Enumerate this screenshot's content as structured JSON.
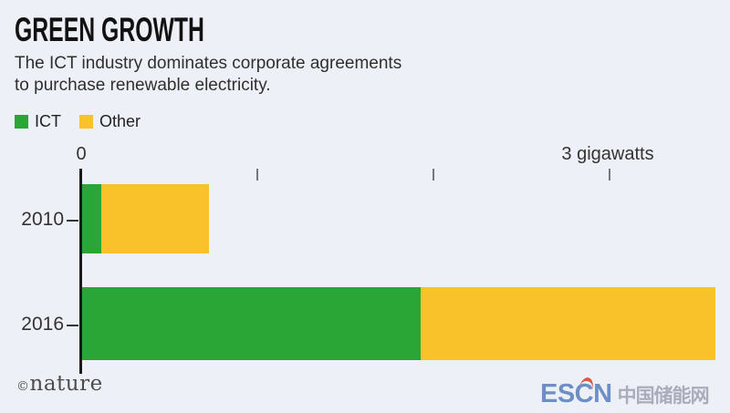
{
  "title": "GREEN GROWTH",
  "subtitle": {
    "line1": "The ICT industry dominates corporate agreements",
    "line2": "to purchase renewable electricity."
  },
  "legend": [
    {
      "label": "ICT",
      "color": "#2aa637"
    },
    {
      "label": "Other",
      "color": "#f9c22b"
    }
  ],
  "axis": {
    "zero_label": "0",
    "max_label": "3 gigawatts"
  },
  "chart_data": {
    "type": "bar",
    "orientation": "horizontal",
    "stacked": true,
    "categories": [
      "2010",
      "2016"
    ],
    "series": [
      {
        "name": "ICT",
        "color": "#2aa637",
        "values": [
          0.11,
          1.92
        ]
      },
      {
        "name": "Other",
        "color": "#f9c22b",
        "values": [
          0.61,
          1.67
        ]
      }
    ],
    "unit": "gigawatts",
    "xlim": [
      0,
      3.6
    ],
    "ticks": [
      0,
      1,
      2,
      3
    ],
    "grid": false,
    "legend_position": "top-left"
  },
  "colors": {
    "background": "#eef0f7",
    "axis": "#1b1b1b",
    "tick": "#777777",
    "text": "#2f2f2f"
  },
  "footer": {
    "source": "nature",
    "copyright_symbol": "©",
    "watermark_latin": "ESCN",
    "watermark_cjk": "中国储能网"
  }
}
